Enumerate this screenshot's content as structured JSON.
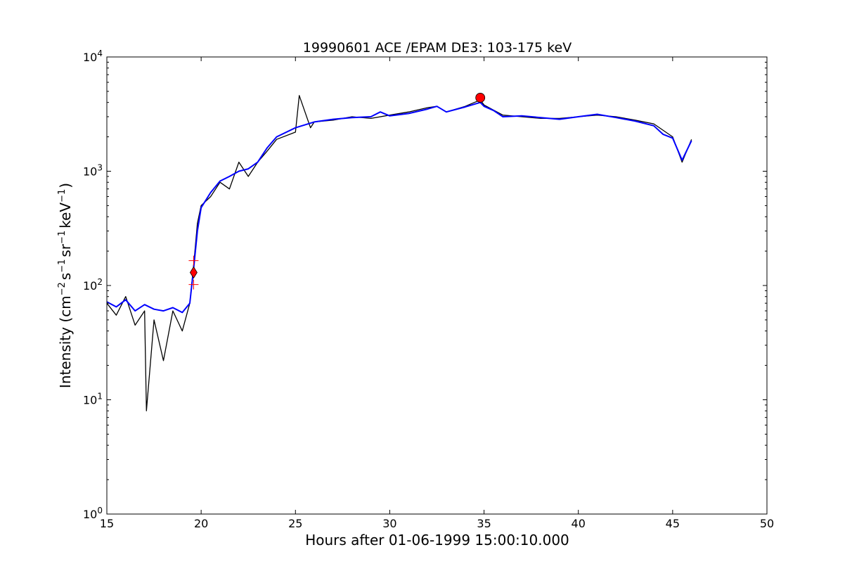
{
  "chart_data": {
    "type": "line",
    "title": "19990601 ACE /EPAM DE3: 103-175 keV",
    "xlabel": "Hours after 01-06-1999 15:00:10.000",
    "ylabel": {
      "prefix": "Intensity (cm",
      "exp1": "−2",
      "mid1": "s",
      "exp2": "−1",
      "mid2": "sr",
      "exp3": "−1",
      "mid3": "keV",
      "exp4": "−1",
      "suffix": ")"
    },
    "xlim": [
      15,
      50
    ],
    "ylim": [
      1,
      10000
    ],
    "yscale": "log",
    "grid": false,
    "x_ticks": [
      {
        "value": 15,
        "label": "15"
      },
      {
        "value": 20,
        "label": "20"
      },
      {
        "value": 25,
        "label": "25"
      },
      {
        "value": 30,
        "label": "30"
      },
      {
        "value": 35,
        "label": "35"
      },
      {
        "value": 40,
        "label": "40"
      },
      {
        "value": 45,
        "label": "45"
      },
      {
        "value": 50,
        "label": "50"
      }
    ],
    "y_ticks": [
      {
        "value": 1,
        "base": "10",
        "exp": "0"
      },
      {
        "value": 10,
        "base": "10",
        "exp": "1"
      },
      {
        "value": 100,
        "base": "10",
        "exp": "2"
      },
      {
        "value": 1000,
        "base": "10",
        "exp": "3"
      },
      {
        "value": 10000,
        "base": "10",
        "exp": "4"
      }
    ],
    "series": [
      {
        "color": "#000000",
        "x": [
          15.0,
          15.5,
          16.0,
          16.5,
          17.0,
          17.1,
          17.5,
          18.0,
          18.5,
          19.0,
          19.4,
          19.6,
          19.8,
          20.0,
          20.5,
          21.0,
          21.5,
          22.0,
          22.5,
          23.0,
          23.5,
          24.0,
          25.0,
          25.2,
          25.8,
          26.0,
          27.0,
          28.0,
          29.0,
          30.0,
          31.0,
          32.0,
          32.5,
          33.0,
          34.0,
          34.8,
          35.0,
          36.0,
          37.0,
          38.0,
          39.0,
          40.0,
          41.0,
          42.0,
          43.0,
          44.0,
          45.0,
          45.5,
          46.0
        ],
        "y": [
          70,
          55,
          80,
          45,
          60,
          8,
          50,
          22,
          60,
          40,
          70,
          150,
          350,
          500,
          600,
          800,
          700,
          1200,
          900,
          1200,
          1500,
          1900,
          2200,
          4600,
          2400,
          2700,
          2800,
          3000,
          2900,
          3100,
          3300,
          3600,
          3700,
          3300,
          3700,
          4200,
          3800,
          3100,
          3000,
          2900,
          2900,
          3000,
          3100,
          3000,
          2800,
          2600,
          2000,
          1200,
          1900
        ]
      },
      {
        "color": "#0000ff",
        "x": [
          15.0,
          15.5,
          16.0,
          16.5,
          17.0,
          17.5,
          18.0,
          18.5,
          19.0,
          19.4,
          19.6,
          19.8,
          20.0,
          20.5,
          21.0,
          21.5,
          22.0,
          22.5,
          23.0,
          23.5,
          24.0,
          25.0,
          26.0,
          27.0,
          28.0,
          29.0,
          29.5,
          30.0,
          31.0,
          32.0,
          32.5,
          33.0,
          34.0,
          34.8,
          35.0,
          35.5,
          36.0,
          37.0,
          38.0,
          39.0,
          40.0,
          41.0,
          42.0,
          43.0,
          44.0,
          44.5,
          45.0,
          45.5,
          46.0
        ],
        "y": [
          72,
          65,
          75,
          60,
          68,
          62,
          60,
          64,
          58,
          70,
          140,
          300,
          480,
          650,
          820,
          900,
          1000,
          1050,
          1200,
          1600,
          2000,
          2400,
          2700,
          2850,
          2950,
          3000,
          3300,
          3050,
          3200,
          3500,
          3700,
          3300,
          3650,
          4000,
          3700,
          3400,
          3000,
          3050,
          2950,
          2850,
          3000,
          3150,
          2950,
          2750,
          2500,
          2100,
          1950,
          1250,
          1850
        ]
      }
    ],
    "markers": [
      {
        "shape": "circle",
        "x": 34.8,
        "y": 4400,
        "color": "#ff0000"
      },
      {
        "shape": "diamond",
        "x": 19.6,
        "y": 130,
        "color": "#ff0000"
      },
      {
        "shape": "plus",
        "x": 19.6,
        "y": 165,
        "color": "#ff0000"
      },
      {
        "shape": "plus",
        "x": 19.6,
        "y": 102,
        "color": "#ff0000"
      }
    ]
  }
}
